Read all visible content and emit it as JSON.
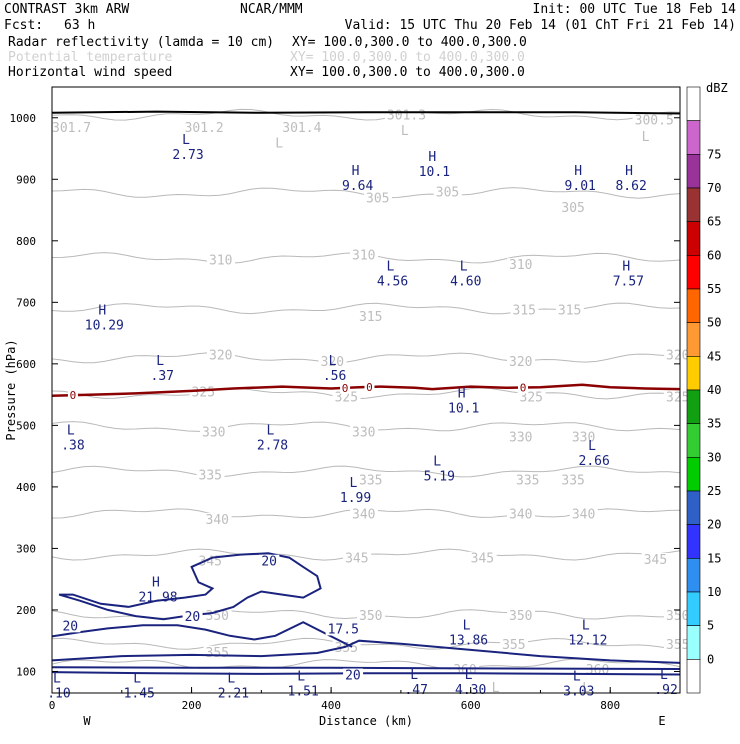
{
  "header": {
    "title_left": "CONTRAST   3km ARW",
    "title_center": "NCAR/MMM",
    "init": "Init: 00 UTC Tue 18 Feb 14",
    "fcst_label": "Fcst:",
    "fcst_value": "63 h",
    "valid": "Valid: 15 UTC Thu 20 Feb 14 (01 ChT Fri 21 Feb 14)",
    "fields": [
      {
        "name": "Radar reflectivity (lamda = 10 cm)",
        "xy": "XY= 100.0,300.0 to 400.0,300.0",
        "faint": false
      },
      {
        "name": "Potential temperature",
        "xy": "XY= 100.0,300.0 to 400.0,300.0",
        "faint": true
      },
      {
        "name": "Horizontal wind speed",
        "xy": "XY= 100.0,300.0 to 400.0,300.0",
        "faint": false
      }
    ]
  },
  "chart_data": {
    "type": "cross-section",
    "xlabel": "Distance (km)",
    "ylabel": "Pressure (hPa)",
    "xlim": [
      0,
      900
    ],
    "ylim": [
      1050,
      65
    ],
    "x_ticks": [
      0,
      200,
      400,
      600,
      800
    ],
    "y_ticks": [
      100,
      200,
      300,
      400,
      500,
      600,
      700,
      800,
      900,
      1000
    ],
    "left_end": "W",
    "right_end": "E",
    "colorbar": {
      "title": "dBZ",
      "levels": [
        0,
        5,
        10,
        15,
        20,
        25,
        30,
        35,
        40,
        45,
        50,
        55,
        60,
        65,
        70,
        75
      ],
      "colors": [
        "#ffffff",
        "#99ffff",
        "#33ccff",
        "#2e8ff0",
        "#3333ff",
        "#2e60c8",
        "#00cc00",
        "#33cc33",
        "#11a011",
        "#ffcc00",
        "#ff9933",
        "#ff6600",
        "#ff0000",
        "#cc0000",
        "#993333",
        "#993399",
        "#cc66cc",
        "#ffffff"
      ]
    },
    "theta_isentropes": [
      {
        "label": "360",
        "p": 112
      },
      {
        "label": "355",
        "p": 145
      },
      {
        "label": "350",
        "p": 193
      },
      {
        "label": "345",
        "p": 290
      },
      {
        "label": "340",
        "p": 357
      },
      {
        "label": "335",
        "p": 425
      },
      {
        "label": "330",
        "p": 498
      },
      {
        "label": "325",
        "p": 552
      },
      {
        "label": "320",
        "p": 610
      },
      {
        "label": "315",
        "p": 690
      },
      {
        "label": "310",
        "p": 772
      },
      {
        "label": "305",
        "p": 878
      },
      {
        "label": "300",
        "p": 1005
      }
    ],
    "theta_labels": [
      {
        "text": "360",
        "x": 575,
        "p": 104
      },
      {
        "text": "360",
        "x": 765,
        "p": 104
      },
      {
        "text": "355",
        "x": 220,
        "p": 132
      },
      {
        "text": "355",
        "x": 405,
        "p": 140
      },
      {
        "text": "355",
        "x": 645,
        "p": 145
      },
      {
        "text": "355",
        "x": 880,
        "p": 145
      },
      {
        "text": "350",
        "x": 220,
        "p": 192
      },
      {
        "text": "350",
        "x": 440,
        "p": 192
      },
      {
        "text": "350",
        "x": 655,
        "p": 192
      },
      {
        "text": "350",
        "x": 880,
        "p": 192
      },
      {
        "text": "345",
        "x": 210,
        "p": 280
      },
      {
        "text": "345",
        "x": 420,
        "p": 285
      },
      {
        "text": "345",
        "x": 600,
        "p": 285
      },
      {
        "text": "345",
        "x": 848,
        "p": 283
      },
      {
        "text": "340",
        "x": 220,
        "p": 348
      },
      {
        "text": "340",
        "x": 430,
        "p": 357
      },
      {
        "text": "340",
        "x": 655,
        "p": 357
      },
      {
        "text": "340",
        "x": 745,
        "p": 357
      },
      {
        "text": "335",
        "x": 210,
        "p": 420
      },
      {
        "text": "335",
        "x": 440,
        "p": 412
      },
      {
        "text": "335",
        "x": 665,
        "p": 412
      },
      {
        "text": "335",
        "x": 730,
        "p": 412
      },
      {
        "text": "330",
        "x": 215,
        "p": 490
      },
      {
        "text": "330",
        "x": 430,
        "p": 490
      },
      {
        "text": "330",
        "x": 655,
        "p": 482
      },
      {
        "text": "330",
        "x": 745,
        "p": 482
      },
      {
        "text": "325",
        "x": 200,
        "p": 555
      },
      {
        "text": "325",
        "x": 405,
        "p": 547
      },
      {
        "text": "325",
        "x": 670,
        "p": 547
      },
      {
        "text": "325",
        "x": 880,
        "p": 547
      },
      {
        "text": "320",
        "x": 225,
        "p": 615
      },
      {
        "text": "320",
        "x": 385,
        "p": 605
      },
      {
        "text": "320",
        "x": 655,
        "p": 605
      },
      {
        "text": "320",
        "x": 880,
        "p": 615
      },
      {
        "text": "315",
        "x": 440,
        "p": 678
      },
      {
        "text": "315",
        "x": 660,
        "p": 688
      },
      {
        "text": "315",
        "x": 725,
        "p": 688
      },
      {
        "text": "310",
        "x": 225,
        "p": 770
      },
      {
        "text": "310",
        "x": 430,
        "p": 778
      },
      {
        "text": "310",
        "x": 655,
        "p": 762
      },
      {
        "text": "305",
        "x": 450,
        "p": 870
      },
      {
        "text": "305",
        "x": 550,
        "p": 880
      },
      {
        "text": "305",
        "x": 730,
        "p": 855
      },
      {
        "text": "301.7",
        "x": 0,
        "p": 985
      },
      {
        "text": "301.2",
        "x": 190,
        "p": 985
      },
      {
        "text": "301.4",
        "x": 330,
        "p": 985
      },
      {
        "text": "301.3",
        "x": 480,
        "p": 1005
      },
      {
        "text": "300.5",
        "x": 835,
        "p": 997
      }
    ],
    "theta_marks": [
      {
        "text": "L",
        "x": 320,
        "p": 960
      },
      {
        "text": "L",
        "x": 500,
        "p": 980
      },
      {
        "text": "L",
        "x": 845,
        "p": 970
      },
      {
        "text": "L",
        "x": 630,
        "p": 75
      },
      {
        "text": "L",
        "x": 760,
        "p": 75
      }
    ],
    "wind_labels": [
      {
        "text": "20",
        "x": 15,
        "p": 175
      },
      {
        "text": "20",
        "x": 190,
        "p": 190
      },
      {
        "text": "20",
        "x": 300,
        "p": 280
      },
      {
        "text": "20",
        "x": 420,
        "p": 95
      },
      {
        "text": "17.5",
        "x": 395,
        "p": 170
      }
    ],
    "extrema": [
      {
        "kind": "L",
        "value": ".10",
        "x": 10,
        "p": 82
      },
      {
        "kind": "L",
        "value": "1.45",
        "x": 125,
        "p": 82
      },
      {
        "kind": "L",
        "value": "2.21",
        "x": 260,
        "p": 82
      },
      {
        "kind": "L",
        "value": "1.51",
        "x": 360,
        "p": 85
      },
      {
        "kind": "L",
        "value": ".47",
        "x": 522,
        "p": 88
      },
      {
        "kind": "L",
        "value": "4.30",
        "x": 600,
        "p": 88
      },
      {
        "kind": "L",
        "value": "3.03",
        "x": 755,
        "p": 85
      },
      {
        "kind": "L",
        "value": ".92",
        "x": 880,
        "p": 88
      },
      {
        "kind": "L",
        "value": "13.86",
        "x": 597,
        "p": 168
      },
      {
        "kind": "L",
        "value": "12.12",
        "x": 768,
        "p": 168
      },
      {
        "kind": "H",
        "value": "21.98",
        "x": 152,
        "p": 238
      },
      {
        "kind": "L",
        "value": "1.99",
        "x": 435,
        "p": 400
      },
      {
        "kind": "L",
        "value": "5.19",
        "x": 555,
        "p": 435
      },
      {
        "kind": "L",
        "value": "2.66",
        "x": 777,
        "p": 460
      },
      {
        "kind": "L",
        "value": ".38",
        "x": 30,
        "p": 485
      },
      {
        "kind": "L",
        "value": "2.78",
        "x": 316,
        "p": 485
      },
      {
        "kind": "H",
        "value": "10.1",
        "x": 590,
        "p": 545
      },
      {
        "kind": "L",
        "value": ".37",
        "x": 158,
        "p": 598
      },
      {
        "kind": "L",
        "value": ".56",
        "x": 405,
        "p": 598
      },
      {
        "kind": "H",
        "value": "10.29",
        "x": 75,
        "p": 680
      },
      {
        "kind": "L",
        "value": "4.56",
        "x": 488,
        "p": 752
      },
      {
        "kind": "L",
        "value": "4.60",
        "x": 593,
        "p": 752
      },
      {
        "kind": "H",
        "value": "7.57",
        "x": 826,
        "p": 752
      },
      {
        "kind": "H",
        "value": "9.64",
        "x": 438,
        "p": 907
      },
      {
        "kind": "H",
        "value": "10.1",
        "x": 548,
        "p": 930
      },
      {
        "kind": "H",
        "value": "9.01",
        "x": 757,
        "p": 907
      },
      {
        "kind": "H",
        "value": "8.62",
        "x": 830,
        "p": 907
      },
      {
        "kind": "L",
        "value": "2.73",
        "x": 195,
        "p": 957
      }
    ],
    "freezing_line": {
      "label": "0",
      "p_points": [
        [
          0,
          548
        ],
        [
          60,
          550
        ],
        [
          120,
          552
        ],
        [
          200,
          556
        ],
        [
          260,
          560
        ],
        [
          330,
          563
        ],
        [
          400,
          560
        ],
        [
          440,
          562
        ],
        [
          470,
          563
        ],
        [
          520,
          561
        ],
        [
          545,
          559
        ],
        [
          600,
          563
        ],
        [
          650,
          561
        ],
        [
          700,
          562
        ],
        [
          760,
          566
        ],
        [
          800,
          562
        ],
        [
          850,
          560
        ],
        [
          900,
          559
        ]
      ],
      "label_x": [
        30,
        420,
        455,
        675
      ]
    },
    "terrain": {
      "p_points": [
        [
          0,
          1008
        ],
        [
          150,
          1010
        ],
        [
          300,
          1008
        ],
        [
          450,
          1009
        ],
        [
          600,
          1009
        ],
        [
          750,
          1009
        ],
        [
          900,
          1007
        ]
      ]
    }
  }
}
